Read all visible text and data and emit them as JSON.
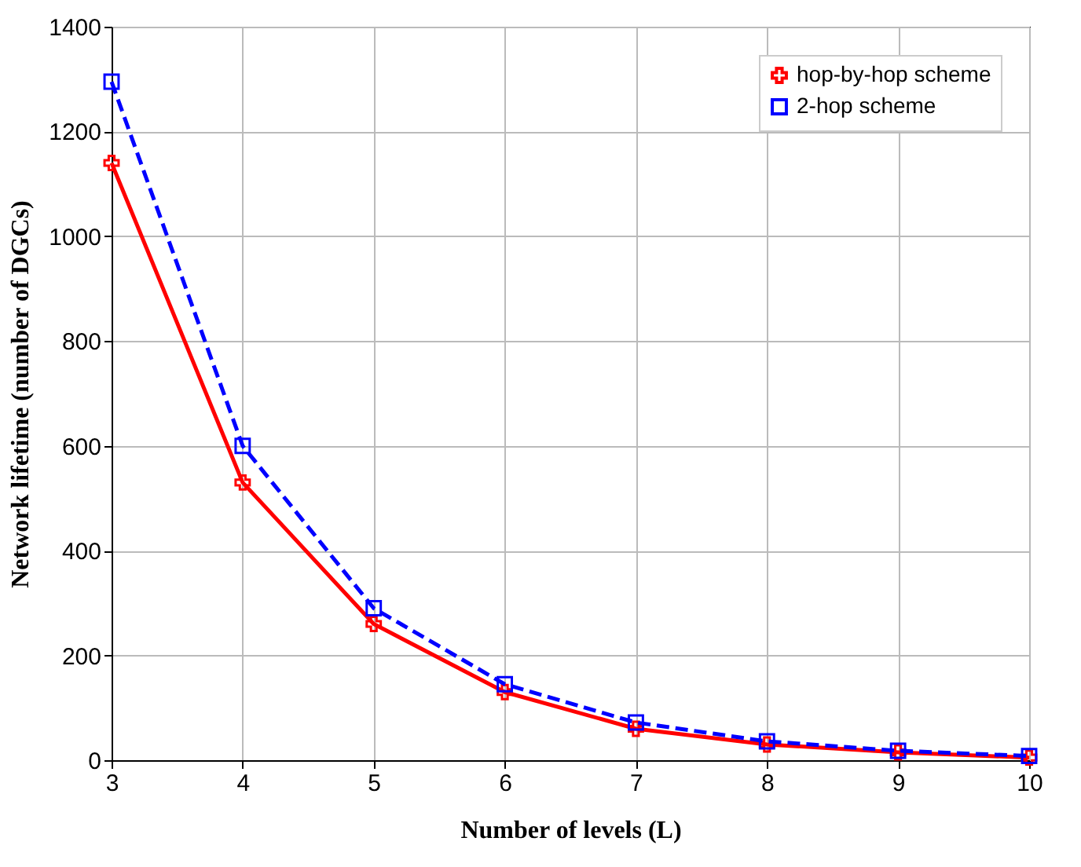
{
  "chart_data": {
    "type": "line",
    "xlabel": "Number of levels (L)",
    "ylabel": "Network lifetime (number of DGCs)",
    "x": [
      3,
      4,
      5,
      6,
      7,
      8,
      9,
      10
    ],
    "xlim": [
      3,
      10
    ],
    "xticks": [
      3,
      4,
      5,
      6,
      7,
      8,
      9,
      10
    ],
    "ylim": [
      0,
      1400
    ],
    "yticks": [
      0,
      200,
      400,
      600,
      800,
      1000,
      1200,
      1400
    ],
    "grid": true,
    "legend": "top right",
    "series": [
      {
        "name": "hop-by-hop scheme",
        "color": "#ff0000",
        "marker": "cross",
        "line_style": "solid",
        "values": [
          1140,
          530,
          260,
          130,
          60,
          30,
          15,
          5
        ]
      },
      {
        "name": "2-hop scheme",
        "color": "#0000ff",
        "marker": "square",
        "line_style": "dashed",
        "values": [
          1295,
          600,
          290,
          145,
          72,
          36,
          18,
          8
        ]
      }
    ]
  }
}
